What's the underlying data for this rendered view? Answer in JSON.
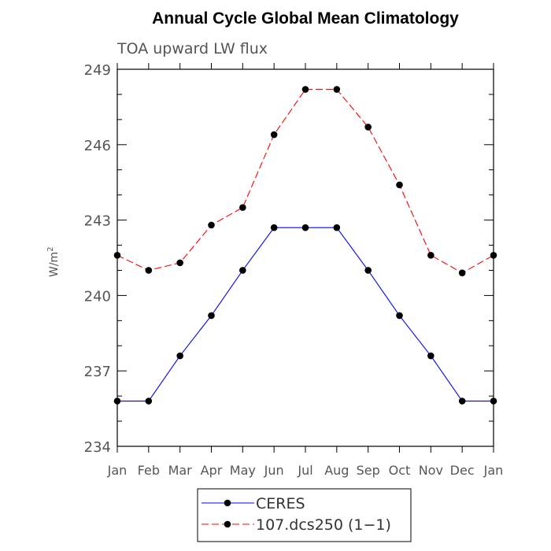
{
  "chart_data": {
    "type": "line",
    "title": "Annual Cycle Global Mean Climatology",
    "subtitle": "TOA upward LW flux",
    "ylabel": "W/m",
    "ylabel_sup": "2",
    "xlabel": "",
    "categories": [
      "Jan",
      "Feb",
      "Mar",
      "Apr",
      "May",
      "Jun",
      "Jul",
      "Aug",
      "Sep",
      "Oct",
      "Nov",
      "Dec",
      "Jan"
    ],
    "yticks": [
      "234",
      "237",
      "240",
      "243",
      "246",
      "249"
    ],
    "ylim": [
      234,
      249
    ],
    "grid": false,
    "legend_position": "bottom-center",
    "series": [
      {
        "name": "CERES",
        "color": "#0000ff",
        "dash": "solid",
        "marker": "filled-circle",
        "values": [
          235.8,
          235.8,
          237.6,
          239.2,
          241.0,
          242.7,
          242.7,
          242.7,
          241.0,
          239.2,
          237.6,
          235.8,
          235.8
        ]
      },
      {
        "name": "107.dcs250 (1−1)",
        "color": "#ff0000",
        "dash": "dashed",
        "marker": "filled-circle",
        "values": [
          241.6,
          241.0,
          241.3,
          242.8,
          243.5,
          246.4,
          248.2,
          248.2,
          246.7,
          244.4,
          241.6,
          240.9,
          241.6
        ]
      }
    ]
  }
}
